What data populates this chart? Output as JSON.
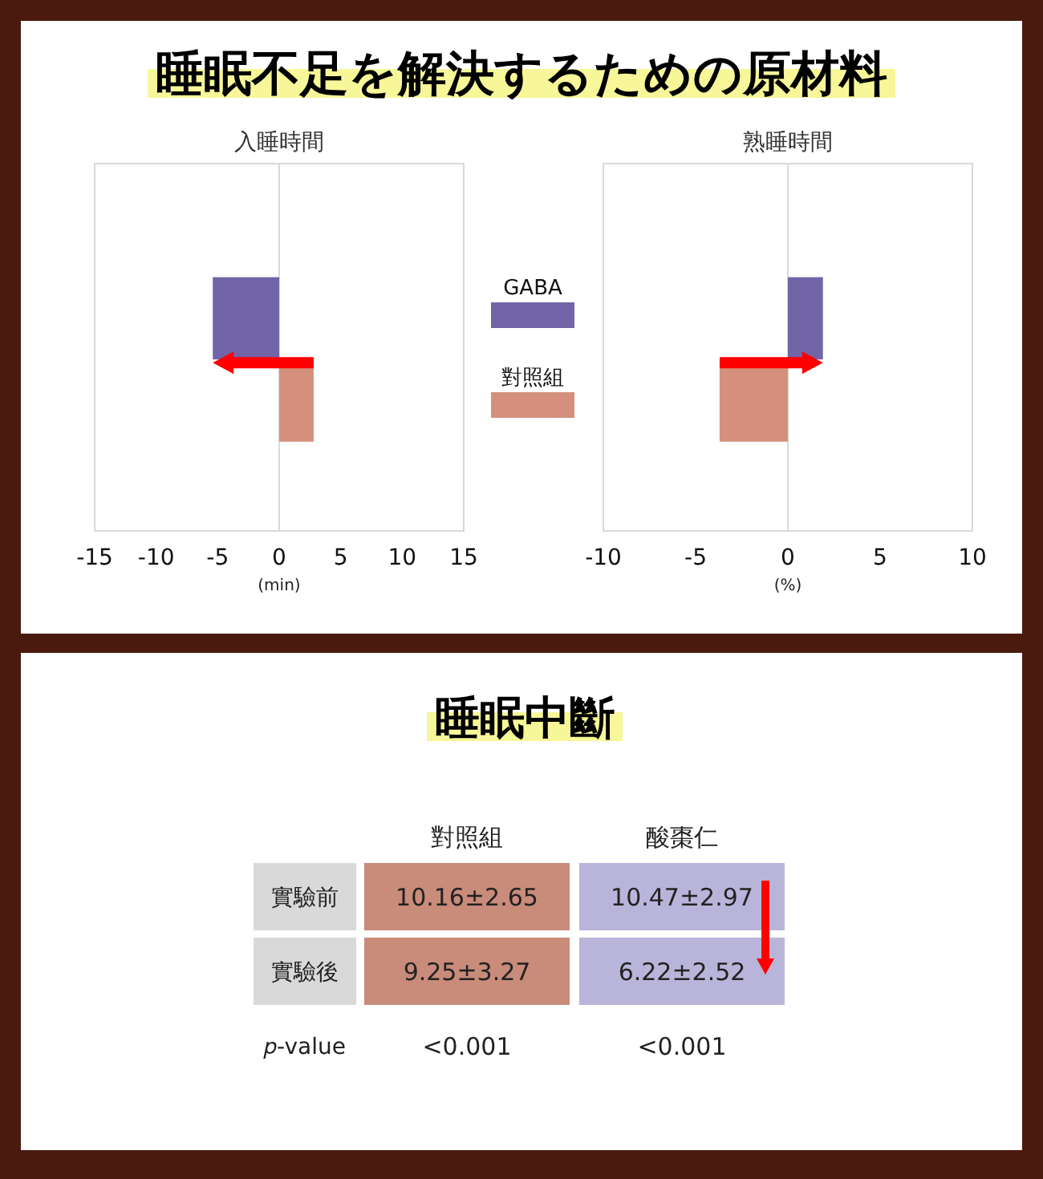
{
  "chart_data": [
    {
      "type": "bar",
      "orientation": "horizontal",
      "title": "睡眠不足を解決するための原材料",
      "subtitle": "入睡時間",
      "xlabel": "(min)",
      "categories": [
        null
      ],
      "series": [
        {
          "name": "GABA",
          "color": "#7265a7",
          "values": [
            -5.4
          ]
        },
        {
          "name": "對照組",
          "color": "#d4907c",
          "values": [
            2.8
          ]
        }
      ],
      "xlim": [
        -15,
        15
      ],
      "xticks": [
        -15,
        -10,
        -5,
        0,
        5,
        10,
        15
      ],
      "legend": "right"
    },
    {
      "type": "bar",
      "orientation": "horizontal",
      "title": "熟睡時間",
      "xlabel": "(%)",
      "categories": [
        null
      ],
      "series": [
        {
          "color": "#7265a7",
          "values": [
            1.9
          ]
        },
        {
          "color": "#d4907c",
          "values": [
            -3.7
          ]
        }
      ],
      "xlim": [
        -10,
        10
      ],
      "xticks": [
        -10,
        -5,
        0,
        5,
        10
      ]
    },
    {
      "type": "other",
      "title": "睡眠中斷",
      "categories": [
        "對照組",
        "酸棗仁"
      ],
      "y_categories": [
        "實驗前",
        "實驗後",
        "𝑝-value"
      ],
      "cell_labels": [
        [
          "10.16±2.65",
          "10.47±2.97"
        ],
        [
          "9.25±3.27",
          "6.22±2.52"
        ],
        [
          "<0.001",
          "<0.001"
        ]
      ]
    }
  ]
}
